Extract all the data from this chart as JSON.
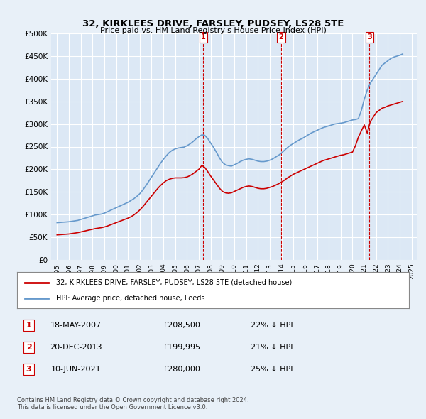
{
  "title": "32, KIRKLEES DRIVE, FARSLEY, PUDSEY, LS28 5TE",
  "subtitle": "Price paid vs. HM Land Registry's House Price Index (HPI)",
  "ylabel": "",
  "xlabel": "",
  "ylim": [
    0,
    500000
  ],
  "yticks": [
    0,
    50000,
    100000,
    150000,
    200000,
    250000,
    300000,
    350000,
    400000,
    450000,
    500000
  ],
  "ytick_labels": [
    "£0",
    "£50K",
    "£100K",
    "£150K",
    "£200K",
    "£250K",
    "£300K",
    "£350K",
    "£400K",
    "£450K",
    "£500K"
  ],
  "background_color": "#e8f0f8",
  "plot_bg_color": "#dce8f5",
  "grid_color": "#ffffff",
  "red_color": "#cc0000",
  "blue_color": "#6699cc",
  "sale_dates": [
    "18-MAY-2007",
    "20-DEC-2013",
    "10-JUN-2021"
  ],
  "sale_prices": [
    208500,
    199995,
    280000
  ],
  "sale_labels": [
    "1",
    "2",
    "3"
  ],
  "sale_years": [
    2007.38,
    2013.97,
    2021.44
  ],
  "hpi_pcts": [
    "22%",
    "21%",
    "25%"
  ],
  "legend_property": "32, KIRKLEES DRIVE, FARSLEY, PUDSEY, LS28 5TE (detached house)",
  "legend_hpi": "HPI: Average price, detached house, Leeds",
  "footer": "Contains HM Land Registry data © Crown copyright and database right 2024.\nThis data is licensed under the Open Government Licence v3.0.",
  "hpi_data": {
    "years": [
      1995.0,
      1995.25,
      1995.5,
      1995.75,
      1996.0,
      1996.25,
      1996.5,
      1996.75,
      1997.0,
      1997.25,
      1997.5,
      1997.75,
      1998.0,
      1998.25,
      1998.5,
      1998.75,
      1999.0,
      1999.25,
      1999.5,
      1999.75,
      2000.0,
      2000.25,
      2000.5,
      2000.75,
      2001.0,
      2001.25,
      2001.5,
      2001.75,
      2002.0,
      2002.25,
      2002.5,
      2002.75,
      2003.0,
      2003.25,
      2003.5,
      2003.75,
      2004.0,
      2004.25,
      2004.5,
      2004.75,
      2005.0,
      2005.25,
      2005.5,
      2005.75,
      2006.0,
      2006.25,
      2006.5,
      2006.75,
      2007.0,
      2007.25,
      2007.5,
      2007.75,
      2008.0,
      2008.25,
      2008.5,
      2008.75,
      2009.0,
      2009.25,
      2009.5,
      2009.75,
      2010.0,
      2010.25,
      2010.5,
      2010.75,
      2011.0,
      2011.25,
      2011.5,
      2011.75,
      2012.0,
      2012.25,
      2012.5,
      2012.75,
      2013.0,
      2013.25,
      2013.5,
      2013.75,
      2014.0,
      2014.25,
      2014.5,
      2014.75,
      2015.0,
      2015.25,
      2015.5,
      2015.75,
      2016.0,
      2016.25,
      2016.5,
      2016.75,
      2017.0,
      2017.25,
      2017.5,
      2017.75,
      2018.0,
      2018.25,
      2018.5,
      2018.75,
      2019.0,
      2019.25,
      2019.5,
      2019.75,
      2020.0,
      2020.25,
      2020.5,
      2020.75,
      2021.0,
      2021.25,
      2021.5,
      2021.75,
      2022.0,
      2022.25,
      2022.5,
      2022.75,
      2023.0,
      2023.25,
      2023.5,
      2023.75,
      2024.0,
      2024.25
    ],
    "values": [
      82000,
      82500,
      83000,
      83500,
      84000,
      85000,
      86000,
      87000,
      89000,
      91000,
      93000,
      95000,
      97000,
      99000,
      100000,
      101000,
      103000,
      106000,
      109000,
      112000,
      115000,
      118000,
      121000,
      124000,
      127000,
      131000,
      135000,
      140000,
      146000,
      154000,
      163000,
      173000,
      183000,
      193000,
      203000,
      213000,
      222000,
      230000,
      237000,
      242000,
      245000,
      247000,
      248000,
      249000,
      252000,
      256000,
      261000,
      267000,
      272000,
      276000,
      275000,
      268000,
      258000,
      248000,
      237000,
      225000,
      215000,
      210000,
      208000,
      207000,
      210000,
      213000,
      217000,
      220000,
      222000,
      223000,
      222000,
      220000,
      218000,
      217000,
      217000,
      218000,
      220000,
      223000,
      227000,
      231000,
      236000,
      242000,
      248000,
      253000,
      257000,
      261000,
      265000,
      268000,
      272000,
      276000,
      280000,
      283000,
      286000,
      289000,
      292000,
      294000,
      296000,
      298000,
      300000,
      301000,
      302000,
      303000,
      305000,
      307000,
      309000,
      310000,
      312000,
      330000,
      355000,
      375000,
      390000,
      400000,
      410000,
      420000,
      430000,
      435000,
      440000,
      445000,
      448000,
      450000,
      452000,
      455000
    ]
  },
  "red_data": {
    "years": [
      1995.0,
      1995.25,
      1995.5,
      1995.75,
      1996.0,
      1996.25,
      1996.5,
      1996.75,
      1997.0,
      1997.25,
      1997.5,
      1997.75,
      1998.0,
      1998.25,
      1998.5,
      1998.75,
      1999.0,
      1999.25,
      1999.5,
      1999.75,
      2000.0,
      2000.25,
      2000.5,
      2000.75,
      2001.0,
      2001.25,
      2001.5,
      2001.75,
      2002.0,
      2002.25,
      2002.5,
      2002.75,
      2003.0,
      2003.25,
      2003.5,
      2003.75,
      2004.0,
      2004.25,
      2004.5,
      2004.75,
      2005.0,
      2005.25,
      2005.5,
      2005.75,
      2006.0,
      2006.25,
      2006.5,
      2006.75,
      2007.0,
      2007.25,
      2007.5,
      2007.75,
      2008.0,
      2008.25,
      2008.5,
      2008.75,
      2009.0,
      2009.25,
      2009.5,
      2009.75,
      2010.0,
      2010.25,
      2010.5,
      2010.75,
      2011.0,
      2011.25,
      2011.5,
      2011.75,
      2012.0,
      2012.25,
      2012.5,
      2012.75,
      2013.0,
      2013.25,
      2013.5,
      2013.75,
      2014.0,
      2014.25,
      2014.5,
      2014.75,
      2015.0,
      2015.25,
      2015.5,
      2015.75,
      2016.0,
      2016.25,
      2016.5,
      2016.75,
      2017.0,
      2017.25,
      2017.5,
      2017.75,
      2018.0,
      2018.25,
      2018.5,
      2018.75,
      2019.0,
      2019.25,
      2019.5,
      2019.75,
      2020.0,
      2020.25,
      2020.5,
      2020.75,
      2021.0,
      2021.25,
      2021.5,
      2021.75,
      2022.0,
      2022.25,
      2022.5,
      2022.75,
      2023.0,
      2023.25,
      2023.5,
      2023.75,
      2024.0,
      2024.25
    ],
    "values": [
      55000,
      55500,
      56000,
      56500,
      57000,
      58000,
      59000,
      60000,
      61500,
      63000,
      64500,
      66000,
      67500,
      69000,
      70000,
      71000,
      72500,
      74500,
      77000,
      79500,
      82000,
      84500,
      87000,
      89500,
      92000,
      95000,
      99000,
      104000,
      110000,
      117000,
      125000,
      133000,
      141000,
      149000,
      157000,
      164000,
      170000,
      175000,
      178000,
      180000,
      181000,
      181000,
      181000,
      181500,
      183000,
      186000,
      190000,
      195000,
      200000,
      208500,
      204000,
      195000,
      185000,
      176000,
      167000,
      158000,
      151000,
      148000,
      147000,
      148000,
      151000,
      154000,
      157000,
      160000,
      162000,
      163000,
      162000,
      160000,
      158000,
      157000,
      157000,
      158000,
      160000,
      162000,
      165000,
      168000,
      172000,
      176000,
      181000,
      185000,
      189000,
      192000,
      195000,
      198000,
      201000,
      204000,
      207000,
      210000,
      213000,
      216000,
      219000,
      221000,
      223000,
      225000,
      227000,
      229000,
      231000,
      232000,
      234000,
      236000,
      238000,
      252000,
      271000,
      285000,
      298000,
      280000,
      305000,
      315000,
      325000,
      330000,
      335000,
      337000,
      340000,
      342000,
      344000,
      346000,
      348000,
      350000
    ]
  }
}
